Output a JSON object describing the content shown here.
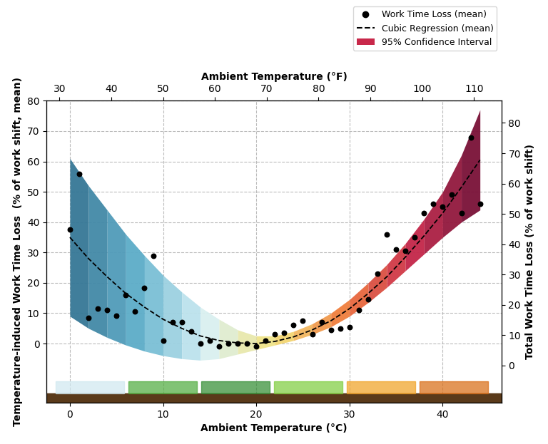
{
  "chart_data": {
    "type": "scatter",
    "xlabel": "Ambient Temperature (°C)",
    "x2label": "Ambient Temperature (°F)",
    "ylabel": "Temperature-induced Work Time Loss  (% of work shift, mean)",
    "y2label": "Total Work Time Loss (% of work shift)",
    "xlim": [
      -2.5,
      46.3
    ],
    "xticks": [
      0,
      10,
      20,
      30,
      40
    ],
    "x2lim": [
      27.5,
      115.3
    ],
    "x2ticks": [
      30,
      40,
      50,
      60,
      70,
      80,
      90,
      100,
      110
    ],
    "ylim": [
      -19.5,
      80
    ],
    "yticks": [
      0,
      10,
      20,
      30,
      40,
      50,
      60,
      70,
      80
    ],
    "y2lim": [
      -12.3,
      87.3
    ],
    "y2ticks": [
      0,
      10,
      20,
      30,
      40,
      50,
      60,
      70,
      80
    ],
    "grid": true,
    "legend": "upper right",
    "series": [
      {
        "name": "Work Time Loss (mean)",
        "type": "scatter",
        "marker": "o",
        "color": "#000000",
        "x": [
          0,
          1,
          2,
          3,
          4,
          5,
          6,
          7,
          8,
          9,
          10,
          11,
          12,
          13,
          14,
          15,
          16,
          17,
          18,
          19,
          20,
          21,
          22,
          23,
          24,
          25,
          26,
          27,
          28,
          29,
          30,
          31,
          32,
          33,
          34,
          35,
          36,
          37,
          38,
          39,
          40,
          41,
          42,
          43,
          44
        ],
        "values": [
          37.5,
          56,
          8.5,
          11.5,
          11,
          9.2,
          16,
          10.5,
          18.3,
          29,
          1,
          7,
          7,
          4,
          0,
          1,
          -1,
          0,
          0,
          0,
          -1,
          1,
          3,
          3.5,
          6,
          7.5,
          3,
          7,
          4.5,
          5,
          5.5,
          11,
          14.5,
          23,
          36,
          31,
          30.5,
          35,
          43,
          46,
          45,
          49,
          43,
          68,
          46
        ]
      },
      {
        "name": "Cubic Regression (mean)",
        "type": "line",
        "line_style": "dashed",
        "color": "#000000",
        "x": [
          0,
          2,
          4,
          6,
          8,
          10,
          12,
          14,
          16,
          18,
          20,
          22,
          24,
          26,
          28,
          30,
          32,
          34,
          36,
          38,
          40,
          42,
          44
        ],
        "values": [
          35,
          28,
          22,
          16.5,
          12,
          8,
          5,
          2.5,
          1,
          0.2,
          0,
          0.7,
          2.2,
          4.5,
          7.5,
          11.5,
          16.5,
          22,
          28.5,
          35.5,
          43,
          51.5,
          60.5
        ]
      },
      {
        "name": "95% Confidence Interval",
        "type": "area",
        "x": [
          0,
          2,
          4,
          6,
          8,
          10,
          12,
          14,
          16,
          18,
          20,
          22,
          24,
          26,
          28,
          30,
          32,
          34,
          36,
          38,
          40,
          42,
          44
        ],
        "lower": [
          9,
          5,
          2,
          -0.5,
          -2.5,
          -4,
          -5,
          -5.5,
          -5,
          -3.5,
          -2,
          -0.5,
          1,
          3,
          5.5,
          9,
          13.5,
          18.5,
          24,
          29.5,
          35,
          40,
          44
        ],
        "upper": [
          61,
          52,
          44,
          36,
          29,
          22.5,
          17,
          12,
          8,
          4.5,
          2.5,
          2.5,
          4,
          6.5,
          10,
          14.5,
          20,
          26,
          33,
          41,
          50,
          62,
          77
        ]
      }
    ]
  }
}
